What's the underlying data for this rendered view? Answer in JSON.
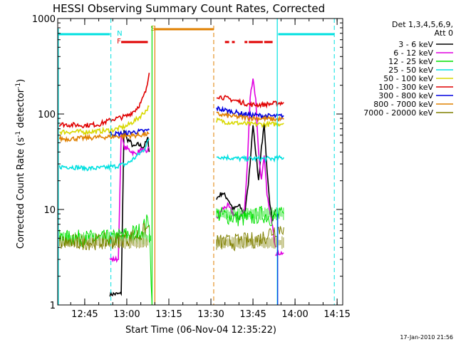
{
  "chart_data": {
    "type": "line",
    "title": "HESSI Observing Summary Count Rates, Corrected",
    "xlabel": "Start Time (06-Nov-04 12:35:22)",
    "ylabel": "Corrected Count Rate (s⁻¹ detector⁻¹)",
    "ylabel_main": "Corrected Count Rate (s",
    "ylabel_sup1": "-1",
    "ylabel_mid": " detector",
    "ylabel_sup2": "-1",
    "ylabel_end": ")",
    "y_scale": "log",
    "ylim": [
      1,
      1000
    ],
    "xlim": [
      "12:35:22",
      "14:17:00"
    ],
    "x_ticks": [
      "12:45",
      "13:00",
      "13:15",
      "13:30",
      "13:45",
      "14:00",
      "14:15"
    ],
    "y_ticks": [
      "1",
      "10",
      "100",
      "1000"
    ],
    "grid": false,
    "legend": {
      "placement": "right",
      "header_lines": [
        "Det 1,3,4,5,6,9,",
        "Att 0"
      ],
      "entries": [
        {
          "label": "3 - 6 keV",
          "color": "#000000"
        },
        {
          "label": "6 - 12 keV",
          "color": "#e000e0"
        },
        {
          "label": "12 - 25 keV",
          "color": "#00e000"
        },
        {
          "label": "25 - 50 keV",
          "color": "#00e0e0"
        },
        {
          "label": "50 - 100 keV",
          "color": "#d8d800"
        },
        {
          "label": "100 - 300 keV",
          "color": "#e00000"
        },
        {
          "label": "300 - 800 keV",
          "color": "#0000e0"
        },
        {
          "label": "800 - 7000 keV",
          "color": "#e08000"
        },
        {
          "label": "7000 - 20000 keV",
          "color": "#808000"
        }
      ]
    },
    "flags": [
      {
        "label": "F",
        "color": "#e00000"
      },
      {
        "label": "N",
        "color": "#00e0e0"
      },
      {
        "label": "S",
        "color": "#e08000"
      }
    ],
    "series": [
      {
        "name": "3 - 6 keV",
        "segments": [
          [
            [
              "12:54:00",
              1.3
            ],
            [
              "12:58:00",
              1.3
            ],
            [
              "12:59:00",
              70
            ],
            [
              "13:00:00",
              55
            ],
            [
              "13:01:00",
              52
            ],
            [
              "13:02:30",
              45
            ],
            [
              "13:04:00",
              48
            ],
            [
              "13:06:00",
              45
            ],
            [
              "13:07:30",
              55
            ],
            [
              "13:08:00",
              40
            ]
          ],
          [
            [
              "13:32:00",
              13
            ],
            [
              "13:34:00",
              15
            ],
            [
              "13:36:00",
              13
            ],
            [
              "13:38:00",
              10
            ],
            [
              "13:40:00",
              11
            ],
            [
              "13:42:00",
              9
            ],
            [
              "13:43:00",
              15
            ],
            [
              "13:44:00",
              30
            ],
            [
              "13:45:00",
              80
            ],
            [
              "13:46:00",
              40
            ],
            [
              "13:47:00",
              20
            ],
            [
              "13:48:00",
              45
            ],
            [
              "13:49:00",
              75
            ],
            [
              "13:50:00",
              25
            ],
            [
              "13:51:00",
              12
            ],
            [
              "13:52:00",
              8
            ],
            [
              "13:53:00",
              10
            ]
          ]
        ]
      },
      {
        "name": "6 - 12 keV",
        "segments": [
          [
            [
              "12:54:00",
              3
            ],
            [
              "12:57:00",
              3
            ],
            [
              "12:58:00",
              65
            ],
            [
              "12:59:00",
              45
            ],
            [
              "13:01:00",
              42
            ],
            [
              "13:03:00",
              38
            ],
            [
              "13:05:00",
              42
            ],
            [
              "13:07:00",
              40
            ],
            [
              "13:08:00",
              45
            ]
          ],
          [
            [
              "13:32:00",
              8
            ],
            [
              "13:34:00",
              10
            ],
            [
              "13:36:00",
              11
            ],
            [
              "13:38:00",
              9
            ],
            [
              "13:40:00",
              8
            ],
            [
              "13:42:00",
              10
            ],
            [
              "13:43:00",
              30
            ],
            [
              "13:44:00",
              150
            ],
            [
              "13:45:00",
              240
            ],
            [
              "13:46:00",
              140
            ],
            [
              "13:47:00",
              40
            ],
            [
              "13:48:00",
              20
            ],
            [
              "13:49:00",
              35
            ],
            [
              "13:50:00",
              15
            ],
            [
              "13:51:00",
              9
            ],
            [
              "13:52:00",
              7
            ],
            [
              "13:53:00",
              4
            ]
          ],
          [
            [
              "13:53:00",
              3.5
            ],
            [
              "13:56:00",
              3.5
            ]
          ]
        ]
      },
      {
        "name": "12 - 25 keV",
        "segments": [
          [
            [
              "12:36:00",
              5
            ],
            [
              "12:40:00",
              5
            ],
            [
              "12:45:00",
              5
            ],
            [
              "12:50:00",
              5
            ],
            [
              "12:55:00",
              5
            ],
            [
              "13:00:00",
              5.5
            ],
            [
              "13:05:00",
              6
            ],
            [
              "13:08:00",
              8
            ],
            [
              "13:09:00",
              1
            ]
          ],
          [
            [
              "13:32:00",
              9
            ],
            [
              "13:36:00",
              8.5
            ],
            [
              "13:40:00",
              8
            ],
            [
              "13:44:00",
              8
            ],
            [
              "13:48:00",
              9
            ],
            [
              "13:52:00",
              8
            ],
            [
              "13:56:00",
              9
            ]
          ]
        ]
      },
      {
        "name": "25 - 50 keV",
        "segments": [
          [
            [
              "12:36:00",
              28
            ],
            [
              "12:40:00",
              28
            ],
            [
              "12:45:00",
              27
            ],
            [
              "12:50:00",
              27
            ],
            [
              "12:55:00",
              28
            ],
            [
              "13:00:00",
              30
            ],
            [
              "13:03:00",
              35
            ],
            [
              "13:06:00",
              42
            ],
            [
              "13:08:00",
              55
            ]
          ],
          [
            [
              "13:32:00",
              36
            ],
            [
              "13:36:00",
              35
            ],
            [
              "13:40:00",
              34
            ],
            [
              "13:44:00",
              34
            ],
            [
              "13:48:00",
              34
            ],
            [
              "13:52:00",
              34
            ],
            [
              "13:56:00",
              35
            ]
          ]
        ]
      },
      {
        "name": "50 - 100 keV",
        "segments": [
          [
            [
              "12:36:00",
              65
            ],
            [
              "12:40:00",
              65
            ],
            [
              "12:45:00",
              65
            ],
            [
              "12:50:00",
              66
            ],
            [
              "12:55:00",
              68
            ],
            [
              "13:00:00",
              75
            ],
            [
              "13:04:00",
              90
            ],
            [
              "13:07:00",
              110
            ],
            [
              "13:08:00",
              120
            ]
          ],
          [
            [
              "13:32:00",
              86
            ],
            [
              "13:36:00",
              82
            ],
            [
              "13:40:00",
              80
            ],
            [
              "13:44:00",
              78
            ],
            [
              "13:48:00",
              78
            ],
            [
              "13:52:00",
              78
            ],
            [
              "13:56:00",
              80
            ]
          ]
        ]
      },
      {
        "name": "100 - 300 keV",
        "segments": [
          [
            [
              "12:36:00",
              78
            ],
            [
              "12:40:00",
              77
            ],
            [
              "12:45:00",
              76
            ],
            [
              "12:50:00",
              78
            ],
            [
              "12:55:00",
              88
            ],
            [
              "13:00:00",
              95
            ],
            [
              "13:03:00",
              110
            ],
            [
              "13:05:00",
              130
            ],
            [
              "13:07:00",
              180
            ],
            [
              "13:08:00",
              270
            ]
          ],
          [
            [
              "13:32:00",
              155
            ],
            [
              "13:36:00",
              145
            ],
            [
              "13:40:00",
              135
            ],
            [
              "13:44:00",
              125
            ],
            [
              "13:48:00",
              125
            ],
            [
              "13:52:00",
              128
            ],
            [
              "13:56:00",
              132
            ]
          ]
        ]
      },
      {
        "name": "300 - 800 keV",
        "segments": [
          [
            [
              "12:54:00",
              62
            ],
            [
              "12:57:00",
              62
            ],
            [
              "13:00:00",
              63
            ],
            [
              "13:03:00",
              65
            ],
            [
              "13:06:00",
              66
            ],
            [
              "13:08:00",
              68
            ]
          ],
          [
            [
              "13:32:00",
              115
            ],
            [
              "13:36:00",
              108
            ],
            [
              "13:40:00",
              102
            ],
            [
              "13:44:00",
              98
            ],
            [
              "13:48:00",
              96
            ],
            [
              "13:52:00",
              95
            ],
            [
              "13:56:00",
              95
            ]
          ]
        ]
      },
      {
        "name": "800 - 7000 keV",
        "segments": [
          [
            [
              "12:36:00",
              55
            ],
            [
              "12:40:00",
              55
            ],
            [
              "12:45:00",
              56
            ],
            [
              "12:50:00",
              57
            ],
            [
              "12:55:00",
              58
            ],
            [
              "13:00:00",
              59
            ],
            [
              "13:04:00",
              60
            ],
            [
              "13:08:00",
              62
            ]
          ],
          [
            [
              "13:32:00",
              100
            ],
            [
              "13:36:00",
              96
            ],
            [
              "13:40:00",
              93
            ],
            [
              "13:44:00",
              91
            ],
            [
              "13:48:00",
              90
            ],
            [
              "13:52:00",
              88
            ],
            [
              "13:56:00",
              88
            ]
          ]
        ]
      },
      {
        "name": "7000 - 20000 keV",
        "segments": [
          [
            [
              "12:36:00",
              4.5
            ],
            [
              "12:40:00",
              4.5
            ],
            [
              "12:45:00",
              4.6
            ],
            [
              "12:50:00",
              4.6
            ],
            [
              "12:55:00",
              4.7
            ],
            [
              "13:00:00",
              5
            ],
            [
              "13:05:00",
              5.5
            ],
            [
              "13:08:00",
              6.5
            ]
          ],
          [
            [
              "13:32:00",
              4.5
            ],
            [
              "13:36:00",
              4.5
            ],
            [
              "13:40:00",
              4.6
            ],
            [
              "13:44:00",
              4.7
            ],
            [
              "13:48:00",
              5
            ],
            [
              "13:52:00",
              6
            ],
            [
              "13:56:00",
              6.5
            ]
          ]
        ]
      }
    ]
  },
  "footer": {
    "date": "17-Jan-2010 21:56"
  }
}
